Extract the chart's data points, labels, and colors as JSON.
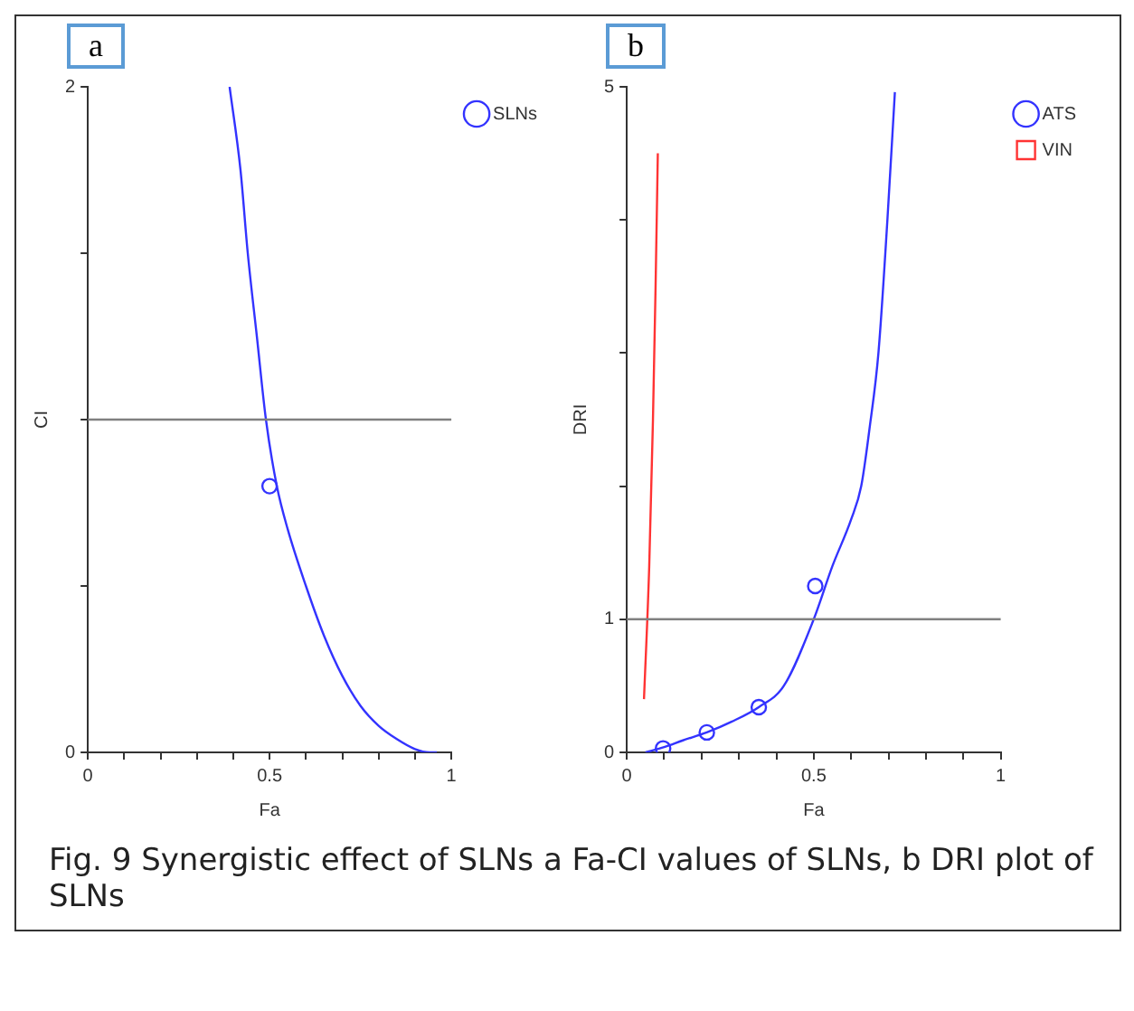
{
  "chart_data": [
    {
      "type": "line",
      "title": "a",
      "xlabel": "Fa",
      "ylabel": "CI",
      "xlim": [
        0,
        1
      ],
      "ylim": [
        0,
        2
      ],
      "xticks": [
        0,
        {
          "value": 0.1,
          "label": null
        },
        {
          "value": 0.2,
          "label": null
        },
        {
          "value": 0.3,
          "label": null
        },
        {
          "value": 0.4,
          "label": null
        },
        0.5,
        {
          "value": 0.6,
          "label": null
        },
        {
          "value": 0.7,
          "label": null
        },
        {
          "value": 0.8,
          "label": null
        },
        {
          "value": 0.9,
          "label": null
        },
        1
      ],
      "yticks": [
        0,
        {
          "value": 0.5,
          "label": null
        },
        {
          "value": 1,
          "label": null
        },
        {
          "value": 1.5,
          "label": null
        },
        2
      ],
      "grid": false,
      "legend": "top right",
      "ref_lines": [
        {
          "axis": "y",
          "value": 1,
          "color": "#808080"
        }
      ],
      "series": [
        {
          "name": "SLNs",
          "type": "scatter",
          "marker": "circle",
          "color": "#3333ff",
          "x": [
            0.5
          ],
          "values": [
            0.8
          ]
        },
        {
          "type": "line",
          "marker": "none",
          "color": "#3333ff",
          "x": [
            0.39,
            0.42,
            0.44,
            0.465,
            0.49,
            0.52,
            0.55,
            0.6,
            0.65,
            0.7,
            0.75,
            0.8,
            0.85,
            0.9,
            0.94,
            0.96
          ],
          "values": [
            2,
            1.75,
            1.5,
            1.25,
            1,
            0.8,
            0.67,
            0.5,
            0.35,
            0.23,
            0.14,
            0.08,
            0.04,
            0.01,
            0,
            0
          ]
        }
      ]
    },
    {
      "type": "line",
      "title": "b",
      "xlabel": "Fa",
      "ylabel": "DRI",
      "xlim": [
        0,
        1
      ],
      "ylim": [
        0,
        5
      ],
      "xticks": [
        0,
        {
          "value": 0.1,
          "label": null
        },
        {
          "value": 0.2,
          "label": null
        },
        {
          "value": 0.3,
          "label": null
        },
        {
          "value": 0.4,
          "label": null
        },
        0.5,
        {
          "value": 0.6,
          "label": null
        },
        {
          "value": 0.7,
          "label": null
        },
        {
          "value": 0.8,
          "label": null
        },
        {
          "value": 0.9,
          "label": null
        },
        1
      ],
      "yticks": [
        0,
        1,
        {
          "value": 2,
          "label": null
        },
        {
          "value": 3,
          "label": null
        },
        {
          "value": 4,
          "label": null
        },
        5
      ],
      "grid": false,
      "legend": "top right",
      "ref_lines": [
        {
          "axis": "y",
          "value": 1,
          "color": "#808080"
        }
      ],
      "annotations": [
        "Fig. 9  Synergistic effect of SLNs a Fa-CI values of SLNs, b DRI plot of SLNs"
      ],
      "series": [
        {
          "name": "ATS",
          "type": "scatter",
          "marker": "circle",
          "color": "#3333ff",
          "x": [
            0.097,
            0.214,
            0.353,
            0.504
          ],
          "values": [
            0.03,
            0.15,
            0.34,
            1.25
          ]
        },
        {
          "type": "line",
          "marker": "none",
          "color": "#3333ff",
          "x": [
            0.05,
            0.1,
            0.15,
            0.214,
            0.28,
            0.353,
            0.42,
            0.5,
            0.55,
            0.6,
            0.627,
            0.65,
            0.673,
            0.697,
            0.717
          ],
          "values": [
            0,
            0.04,
            0.09,
            0.15,
            0.23,
            0.34,
            0.5,
            1,
            1.4,
            1.75,
            2,
            2.45,
            3,
            4,
            4.96
          ]
        },
        {
          "name": "VIN",
          "type": "line",
          "color": "#ff3333",
          "x": [
            0.046,
            0.06,
            0.07,
            0.077,
            0.083
          ],
          "values": [
            0.4,
            1.4,
            2.5,
            3.5,
            4.5
          ]
        }
      ]
    }
  ]
}
